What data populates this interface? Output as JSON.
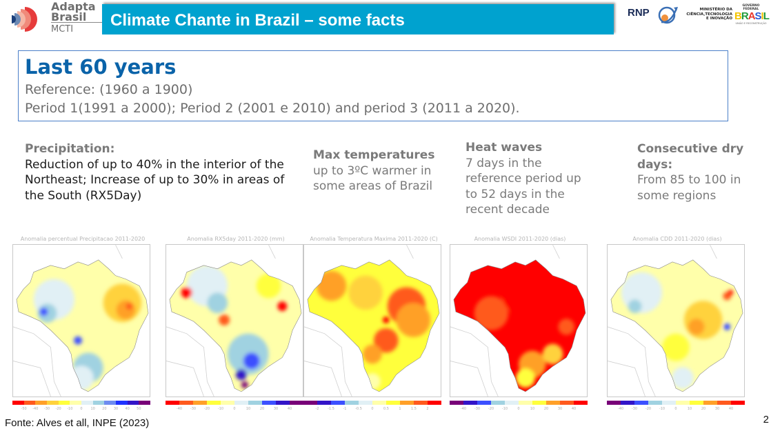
{
  "logo": {
    "line1": "Adapta",
    "line2": "Brasil",
    "line3": "MCTI"
  },
  "header": {
    "title": "Climate Chante in Brazil – some facts"
  },
  "partners": {
    "rnp": "RNP",
    "ministry": [
      "MINISTÉRIO DA",
      "CIÊNCIA,TECNOLOGIA",
      "E INOVAÇÃO"
    ],
    "gov_top": "GOVERNO FEDERAL",
    "gov_word": "BRASIL",
    "gov_bottom": "UNIÃO E RECONSTRUÇÃO"
  },
  "summary": {
    "heading": "Last 60 years",
    "reference": "Reference: (1960 a 1900)",
    "periods": "Period 1(1991 a 2000); Period 2  (2001 e 2010) and period 3 (2011 a 2020)."
  },
  "facts": [
    {
      "heading": "Precipitation:",
      "body": "Reduction of up to 40% in the interior of the Northeast; Increase of up to 30% in areas of the South (RX5Day)"
    },
    {
      "heading": "Max temperatures",
      "body": "up to 3ºC warmer in some areas of Brazil"
    },
    {
      "heading": "Heat waves",
      "body": "7 days in the reference period up to 52 days in the recent decade"
    },
    {
      "heading": "Consecutive dry days:",
      "body": "From 85 to 100 in some regions"
    }
  ],
  "maps": [
    {
      "title": "Anomalia percentual Precipitacao 2011-2020",
      "colors": [
        "#ff0000",
        "#ff5a1e",
        "#ffa028",
        "#ffd23c",
        "#ffff3c",
        "#ffffaa",
        "#e1f0f5",
        "#a0d2e1",
        "#6e8cf0",
        "#1e32ff",
        "#3214c8",
        "#780078"
      ],
      "ticks": [
        "-50",
        "-40",
        "-30",
        "-20",
        "-10",
        "0",
        "10",
        "20",
        "30",
        "40",
        "50"
      ],
      "theme": "precip"
    },
    {
      "title": "Anomalia RX5day 2011-2020 (mm)",
      "colors": [
        "#ff0000",
        "#ff5a1e",
        "#ffa028",
        "#ffff3c",
        "#ffffaa",
        "#e1f0f5",
        "#a0d2e1",
        "#3c50ff",
        "#3214c8",
        "#780078"
      ],
      "ticks": [
        "-40",
        "-30",
        "-20",
        "-10",
        "0",
        "10",
        "20",
        "30",
        "40"
      ],
      "theme": "rx5"
    },
    {
      "title": "Anomalia Temperatura Maxima 2011-2020 (C)",
      "colors": [
        "#780078",
        "#3214c8",
        "#3c50ff",
        "#a0d2e1",
        "#e1f0f5",
        "#ffffaa",
        "#ffff3c",
        "#ffa028",
        "#ff5a1e",
        "#ff0000"
      ],
      "ticks": [
        "-2",
        "-1.5",
        "-1",
        "-0.5",
        "0",
        "0.5",
        "1",
        "1.5",
        "2"
      ],
      "theme": "tmax"
    },
    {
      "title": "Anomalia WSDI 2011-2020 (dias)",
      "colors": [
        "#780078",
        "#3214c8",
        "#3c50ff",
        "#a0d2e1",
        "#e1f0f5",
        "#ffffaa",
        "#ffff3c",
        "#ffa028",
        "#ff5a1e",
        "#ff0000"
      ],
      "ticks": [
        "-40",
        "-30",
        "-20",
        "-10",
        "0",
        "10",
        "20",
        "30",
        "40"
      ],
      "theme": "wsdi"
    },
    {
      "title": "Anomalia CDD 2011-2020 (dias)",
      "colors": [
        "#780078",
        "#3214c8",
        "#3c50ff",
        "#a0d2e1",
        "#e1f0f5",
        "#ffffaa",
        "#ffff3c",
        "#ffa028",
        "#ff5a1e",
        "#ff0000"
      ],
      "ticks": [
        "-40",
        "-30",
        "-20",
        "-10",
        "0",
        "10",
        "20",
        "30",
        "40"
      ],
      "theme": "cdd"
    }
  ],
  "footer": {
    "source": "Fonte:  Alves et all, INPE (2023)",
    "page": "2"
  }
}
